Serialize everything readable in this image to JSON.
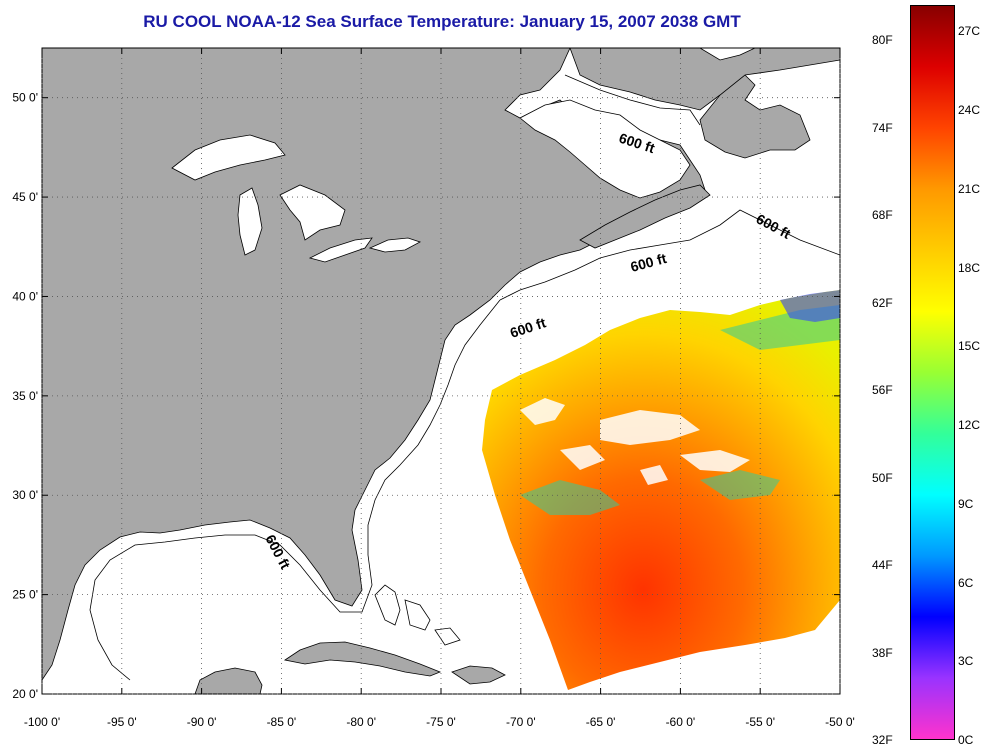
{
  "title": "RU COOL  NOAA-12  Sea Surface Temperature:  January 15, 2007 2038 GMT",
  "map": {
    "lon_labels": [
      "-100 0'",
      "-95 0'",
      "-90 0'",
      "-85 0'",
      "-80 0'",
      "-75 0'",
      "-70 0'",
      "-65 0'",
      "-60 0'",
      "-55 0'",
      "-50 0'"
    ],
    "lat_labels": [
      "50 0'",
      "45 0'",
      "40 0'",
      "35 0'",
      "30 0'",
      "25 0'",
      "20 0'"
    ],
    "lon_range": [
      -100,
      -50
    ],
    "lat_range": [
      20,
      52.5
    ],
    "contour_labels": [
      "600 ft",
      "600 ft",
      "600 ft",
      "600 ft",
      "600 ft"
    ],
    "colors": {
      "land": "#a8a8a8",
      "ocean": "#ffffff",
      "title": "#1a1aa6"
    }
  },
  "colorbar": {
    "fahrenheit_labels": [
      "80F",
      "74F",
      "68F",
      "62F",
      "56F",
      "50F",
      "44F",
      "38F",
      "32F"
    ],
    "celsius_labels": [
      "27C",
      "24C",
      "21C",
      "18C",
      "15C",
      "12C",
      "9C",
      "6C",
      "3C",
      "0C"
    ],
    "range_c": [
      0,
      28
    ],
    "gradient": [
      "#ff33cc",
      "#9933ff",
      "#0000ff",
      "#0099ff",
      "#00ffff",
      "#33ff99",
      "#99ff33",
      "#ffff00",
      "#ffcc00",
      "#ff9900",
      "#ff4400",
      "#dd0000",
      "#880000"
    ]
  }
}
